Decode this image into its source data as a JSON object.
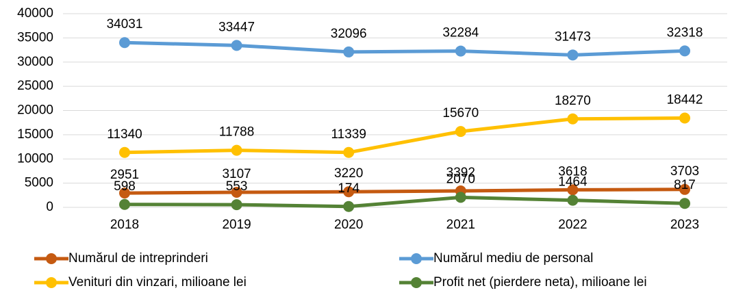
{
  "chart_data": {
    "type": "line",
    "categories": [
      "2018",
      "2019",
      "2020",
      "2021",
      "2022",
      "2023"
    ],
    "series": [
      {
        "name": "Numărul de intreprinderi",
        "color": "#c55a11",
        "values": [
          2951,
          3107,
          3220,
          3392,
          3618,
          3703
        ]
      },
      {
        "name": "Numărul mediu de personal",
        "color": "#5b9bd5",
        "values": [
          34031,
          33447,
          32096,
          32284,
          31473,
          32318
        ]
      },
      {
        "name": "Venituri din vinzari, milioane lei",
        "color": "#ffc000",
        "values": [
          11340,
          11788,
          11339,
          15670,
          18270,
          18442
        ]
      },
      {
        "name": "Profit net (pierdere neta), milioane lei",
        "color": "#548235",
        "values": [
          598,
          553,
          174,
          2070,
          1464,
          817
        ]
      }
    ],
    "ylim": [
      0,
      40000
    ],
    "yticks": [
      0,
      5000,
      10000,
      15000,
      20000,
      25000,
      30000,
      35000,
      40000
    ],
    "grid": true,
    "legend": "bottom"
  }
}
